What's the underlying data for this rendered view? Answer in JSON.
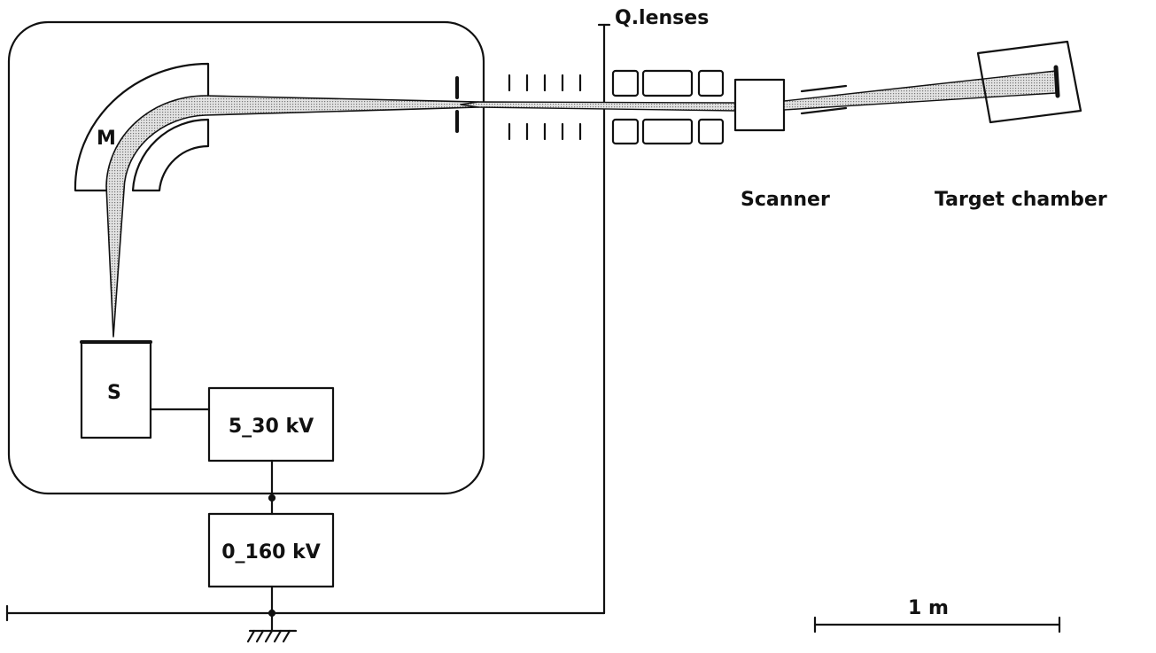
{
  "labels": {
    "magnet": "M",
    "source": "S",
    "extraction_supply": "5_30 kV",
    "acceleration_supply": "0_160 kV",
    "quadrupole_lenses": "Q.lenses",
    "scanner": "Scanner",
    "target_chamber": "Target chamber",
    "scale": "1 m"
  },
  "colors": {
    "ink": "#111111",
    "beam_fill": "#c9c9c9"
  }
}
